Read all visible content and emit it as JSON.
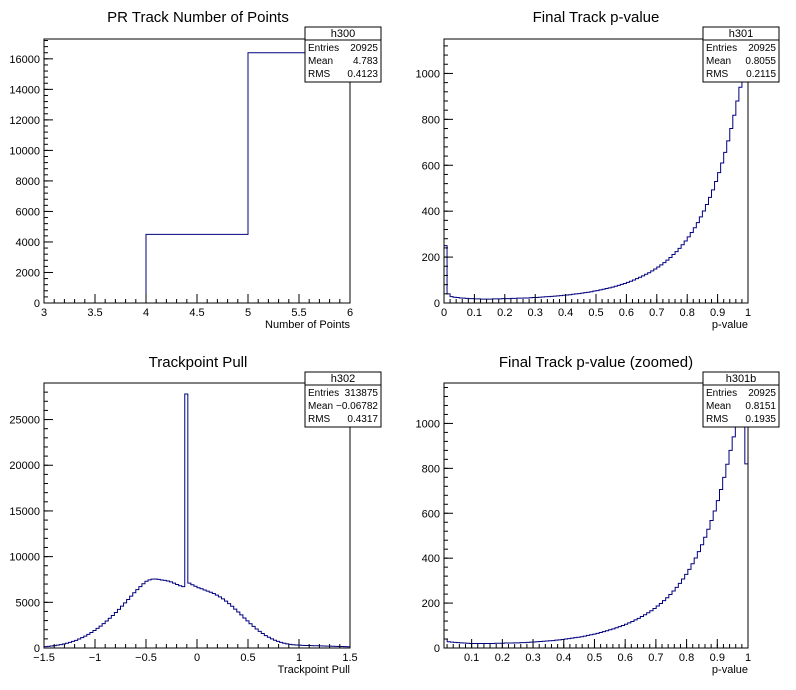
{
  "chart_data": [
    {
      "id": "h300",
      "type": "histogram",
      "title": "PR Track Number of Points",
      "xlabel": "Number of Points",
      "ylabel": "",
      "xlim": [
        3,
        6
      ],
      "ylim": [
        0,
        17300
      ],
      "xticks": [
        3,
        3.5,
        4,
        4.5,
        5,
        5.5,
        6
      ],
      "xtick_labels": [
        "3",
        "3.5",
        "4",
        "4.5",
        "5",
        "5.5",
        "6"
      ],
      "yticks": [
        0,
        2000,
        4000,
        6000,
        8000,
        10000,
        12000,
        14000,
        16000
      ],
      "ytick_labels": [
        "0",
        "2000",
        "4000",
        "6000",
        "8000",
        "10000",
        "12000",
        "14000",
        "16000"
      ],
      "bins": {
        "edges": [
          4,
          5,
          6
        ],
        "values": [
          4500,
          16400
        ]
      },
      "stats": {
        "name": "h300",
        "entries": "20925",
        "mean": "4.783",
        "rms": "0.4123"
      },
      "grid": false,
      "legend": "top-right"
    },
    {
      "id": "h301",
      "type": "histogram",
      "title": "Final Track p-value",
      "xlabel": "p-value",
      "ylabel": "",
      "xlim": [
        0,
        1
      ],
      "ylim": [
        0,
        1150
      ],
      "xticks": [
        0,
        0.1,
        0.2,
        0.3,
        0.4,
        0.5,
        0.6,
        0.7,
        0.8,
        0.9,
        1
      ],
      "xtick_labels": [
        "0",
        "0.1",
        "0.2",
        "0.3",
        "0.4",
        "0.5",
        "0.6",
        "0.7",
        "0.8",
        "0.9",
        "1"
      ],
      "yticks": [
        0,
        200,
        400,
        600,
        800,
        1000
      ],
      "ytick_labels": [
        "0",
        "200",
        "400",
        "600",
        "800",
        "1000"
      ],
      "bins": {
        "range": [
          0,
          1
        ],
        "values": [
          250,
          40,
          28,
          25,
          24,
          22,
          21,
          20,
          19,
          19,
          18,
          18,
          17,
          17,
          17,
          17,
          18,
          18,
          18,
          19,
          19,
          19,
          20,
          20,
          21,
          21,
          22,
          22,
          23,
          24,
          24,
          25,
          26,
          27,
          28,
          29,
          30,
          31,
          32,
          34,
          35,
          36,
          38,
          40,
          41,
          43,
          45,
          47,
          49,
          52,
          54,
          57,
          60,
          63,
          66,
          69,
          73,
          77,
          81,
          85,
          90,
          95,
          100,
          106,
          112,
          118,
          125,
          132,
          140,
          148,
          157,
          166,
          176,
          187,
          198,
          211,
          224,
          238,
          254,
          270,
          288,
          307,
          328,
          350,
          375,
          401,
          429,
          460,
          493,
          529,
          568,
          610,
          656,
          706,
          760,
          818,
          880,
          940,
          1000,
          1150
        ]
      },
      "stats": {
        "name": "h301",
        "entries": "20925",
        "mean": "0.8055",
        "rms": "0.2115"
      },
      "grid": false,
      "legend": "top-right"
    },
    {
      "id": "h302",
      "type": "histogram",
      "title": "Trackpoint Pull",
      "xlabel": "Trackpoint Pull",
      "ylabel": "",
      "xlim": [
        -1.5,
        1.5
      ],
      "ylim": [
        0,
        29000
      ],
      "xticks": [
        -1.5,
        -1,
        -0.5,
        0,
        0.5,
        1,
        1.5
      ],
      "xtick_labels": [
        "−1.5",
        "−1",
        "−0.5",
        "0",
        "0.5",
        "1",
        "1.5"
      ],
      "yticks": [
        0,
        5000,
        10000,
        15000,
        20000,
        25000
      ],
      "ytick_labels": [
        "0",
        "5000",
        "10000",
        "15000",
        "20000",
        "25000"
      ],
      "bins": {
        "range": [
          -1.5,
          1.5
        ],
        "values": [
          150,
          180,
          215,
          260,
          310,
          370,
          440,
          520,
          610,
          720,
          840,
          980,
          1130,
          1300,
          1490,
          1690,
          1910,
          2150,
          2400,
          2670,
          2950,
          3250,
          3560,
          3890,
          4230,
          4580,
          4940,
          5310,
          5680,
          6040,
          6390,
          6720,
          7030,
          7300,
          7460,
          7540,
          7550,
          7510,
          7440,
          7400,
          7330,
          7240,
          7100,
          6950,
          6810,
          6720,
          27800,
          7100,
          6920,
          6760,
          6600,
          6480,
          6350,
          6230,
          6100,
          5960,
          5790,
          5600,
          5380,
          5130,
          4860,
          4570,
          4260,
          3940,
          3620,
          3290,
          2970,
          2660,
          2360,
          2080,
          1820,
          1580,
          1360,
          1170,
          1000,
          850,
          720,
          610,
          520,
          450,
          400,
          360,
          330,
          310,
          290,
          280,
          270,
          260,
          250,
          240,
          230,
          220,
          210,
          200,
          190,
          180,
          170,
          160,
          150,
          140
        ]
      },
      "stats": {
        "name": "h302",
        "entries": "313875",
        "mean": "−0.06782",
        "rms": "0.4317"
      },
      "grid": false,
      "legend": "top-right"
    },
    {
      "id": "h301b",
      "type": "histogram",
      "title": "Final Track p-value (zoomed)",
      "xlabel": "p-value",
      "ylabel": "",
      "xlim": [
        0.01,
        1
      ],
      "ylim": [
        0,
        1180
      ],
      "xticks": [
        0.1,
        0.2,
        0.3,
        0.4,
        0.5,
        0.6,
        0.7,
        0.8,
        0.9,
        1
      ],
      "xtick_labels": [
        "0.1",
        "0.2",
        "0.3",
        "0.4",
        "0.5",
        "0.6",
        "0.7",
        "0.8",
        "0.9",
        "1"
      ],
      "yticks": [
        0,
        200,
        400,
        600,
        800,
        1000
      ],
      "ytick_labels": [
        "0",
        "200",
        "400",
        "600",
        "800",
        "1000"
      ],
      "bins": {
        "range": [
          0.01,
          1
        ],
        "values": [
          40,
          28,
          26,
          25,
          24,
          23,
          22,
          21,
          20,
          20,
          20,
          20,
          20,
          20,
          20,
          20,
          21,
          21,
          21,
          22,
          22,
          22,
          23,
          23,
          24,
          24,
          25,
          26,
          27,
          28,
          29,
          30,
          31,
          32,
          33,
          35,
          36,
          38,
          40,
          42,
          44,
          46,
          48,
          50,
          53,
          56,
          59,
          62,
          65,
          69,
          73,
          77,
          81,
          85,
          90,
          95,
          100,
          106,
          112,
          118,
          125,
          132,
          140,
          148,
          157,
          166,
          176,
          187,
          198,
          211,
          224,
          238,
          254,
          270,
          288,
          307,
          328,
          350,
          375,
          401,
          429,
          460,
          493,
          529,
          568,
          610,
          656,
          706,
          760,
          818,
          880,
          940,
          1000,
          1150,
          990,
          820
        ]
      },
      "stats": {
        "name": "h301b",
        "entries": "20925",
        "mean": "0.8151",
        "rms": "0.1935"
      },
      "grid": false,
      "legend": "top-right"
    }
  ],
  "stats_labels": {
    "entries": "Entries",
    "mean": "Mean",
    "rms": "RMS"
  },
  "colors": {
    "line": "#00007f",
    "axis": "#000000",
    "background": "#ffffff"
  }
}
